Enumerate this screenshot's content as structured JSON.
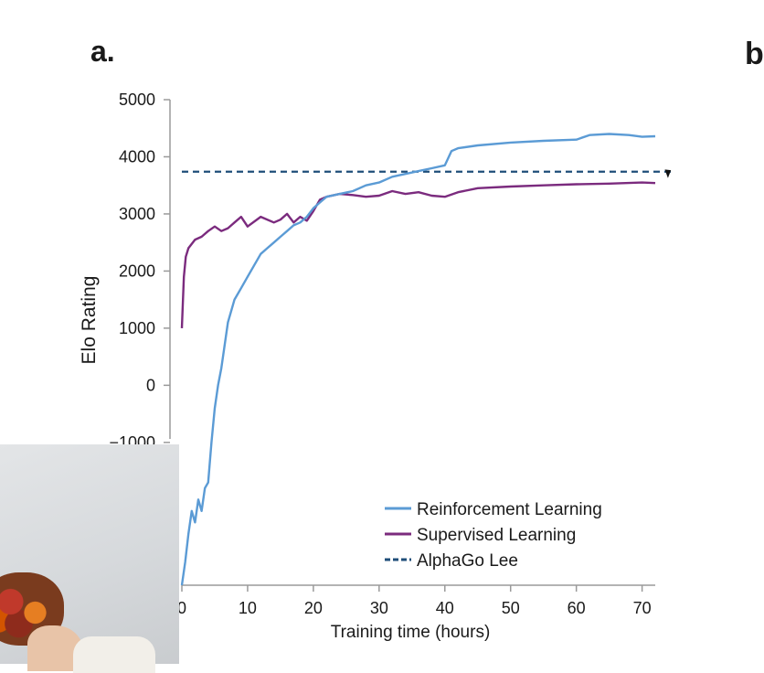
{
  "panel": {
    "label": "a.",
    "edge_letter": "b"
  },
  "chart_data": {
    "type": "line",
    "xlabel": "Training time (hours)",
    "ylabel": "Elo Rating",
    "xlim": [
      0,
      72
    ],
    "ylim": [
      -3500,
      5000
    ],
    "x_ticks": [
      {
        "value": 0,
        "label": "0"
      },
      {
        "value": 10,
        "label": "10"
      },
      {
        "value": 20,
        "label": "20"
      },
      {
        "value": 30,
        "label": "30"
      },
      {
        "value": 40,
        "label": "40"
      },
      {
        "value": 50,
        "label": "50"
      },
      {
        "value": 60,
        "label": "60"
      },
      {
        "value": 70,
        "label": "70"
      }
    ],
    "y_ticks": [
      {
        "value": 5000,
        "label": "5000"
      },
      {
        "value": 4000,
        "label": "4000"
      },
      {
        "value": 3000,
        "label": "3000"
      },
      {
        "value": 2000,
        "label": "2000"
      },
      {
        "value": 1000,
        "label": "1000"
      },
      {
        "value": 0,
        "label": "0"
      },
      {
        "value": -1000,
        "label": "−1000"
      }
    ],
    "grid": false,
    "legend_position": "bottom-right",
    "series": [
      {
        "name": "Reinforcement Learning",
        "color": "#5b9bd5",
        "style": "solid",
        "x": [
          0,
          0.5,
          1,
          1.5,
          2,
          2.5,
          3,
          3.5,
          4,
          4.5,
          5,
          5.5,
          6,
          6.5,
          7,
          7.5,
          8,
          9,
          10,
          11,
          12,
          13,
          14,
          15,
          16,
          17,
          18,
          19,
          20,
          21,
          22,
          24,
          26,
          28,
          30,
          32,
          34,
          36,
          38,
          40,
          41,
          42,
          45,
          50,
          55,
          60,
          62,
          65,
          68,
          70,
          72
        ],
        "y": [
          -3500,
          -3100,
          -2600,
          -2200,
          -2400,
          -2000,
          -2200,
          -1800,
          -1700,
          -1000,
          -400,
          0,
          300,
          700,
          1100,
          1300,
          1500,
          1700,
          1900,
          2100,
          2300,
          2400,
          2500,
          2600,
          2700,
          2800,
          2850,
          2950,
          3100,
          3200,
          3300,
          3350,
          3400,
          3500,
          3550,
          3650,
          3700,
          3750,
          3800,
          3850,
          4100,
          4150,
          4200,
          4250,
          4280,
          4300,
          4380,
          4400,
          4380,
          4350,
          4360
        ]
      },
      {
        "name": "Supervised Learning",
        "color": "#7b2b7e",
        "style": "solid",
        "x": [
          0,
          0.3,
          0.6,
          1,
          2,
          3,
          4,
          5,
          6,
          7,
          8,
          9,
          10,
          12,
          14,
          15,
          16,
          17,
          18,
          19,
          20,
          21,
          22,
          24,
          26,
          28,
          30,
          32,
          34,
          36,
          38,
          40,
          42,
          45,
          50,
          55,
          60,
          65,
          70,
          72
        ],
        "y": [
          1000,
          1900,
          2250,
          2400,
          2550,
          2600,
          2700,
          2780,
          2700,
          2750,
          2850,
          2950,
          2780,
          2950,
          2850,
          2900,
          3000,
          2850,
          2950,
          2880,
          3050,
          3250,
          3300,
          3350,
          3330,
          3300,
          3320,
          3400,
          3350,
          3380,
          3320,
          3300,
          3380,
          3450,
          3480,
          3500,
          3520,
          3530,
          3550,
          3540
        ]
      },
      {
        "name": "AlphaGo Lee",
        "color": "#1f4e79",
        "style": "dashed",
        "x": [
          0,
          72
        ],
        "y": [
          3739,
          3739
        ]
      }
    ]
  }
}
